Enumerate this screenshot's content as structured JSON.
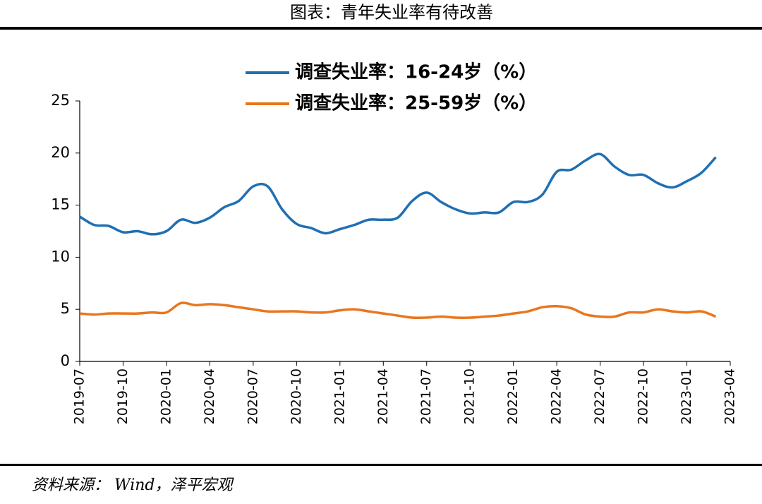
{
  "chart_data": {
    "type": "line",
    "title": "图表：青年失业率有待改善",
    "source": "资料来源： Wind，泽平宏观",
    "x": [
      "2019-07",
      "2019-08",
      "2019-09",
      "2019-10",
      "2019-11",
      "2019-12",
      "2020-01",
      "2020-02",
      "2020-03",
      "2020-04",
      "2020-05",
      "2020-06",
      "2020-07",
      "2020-08",
      "2020-09",
      "2020-10",
      "2020-11",
      "2020-12",
      "2021-01",
      "2021-02",
      "2021-03",
      "2021-04",
      "2021-05",
      "2021-06",
      "2021-07",
      "2021-08",
      "2021-09",
      "2021-10",
      "2021-11",
      "2021-12",
      "2022-01",
      "2022-02",
      "2022-03",
      "2022-04",
      "2022-05",
      "2022-06",
      "2022-07",
      "2022-08",
      "2022-09",
      "2022-10",
      "2022-11",
      "2022-12",
      "2023-01",
      "2023-02",
      "2023-03"
    ],
    "series": [
      {
        "name": "调查失业率：16-24岁（%）",
        "color": "#1f6fb4",
        "values": [
          13.9,
          13.1,
          13.0,
          12.4,
          12.5,
          12.2,
          12.5,
          13.6,
          13.3,
          13.8,
          14.8,
          15.4,
          16.8,
          16.8,
          14.6,
          13.2,
          12.8,
          12.3,
          12.7,
          13.1,
          13.6,
          13.6,
          13.8,
          15.4,
          16.2,
          15.3,
          14.6,
          14.2,
          14.3,
          14.3,
          15.3,
          15.3,
          16.0,
          18.2,
          18.4,
          19.3,
          19.9,
          18.7,
          17.9,
          17.9,
          17.1,
          16.7,
          17.3,
          18.1,
          19.6
        ]
      },
      {
        "name": "调查失业率：25-59岁（%）",
        "color": "#e9761e",
        "values": [
          4.6,
          4.5,
          4.6,
          4.6,
          4.6,
          4.7,
          4.7,
          5.6,
          5.4,
          5.5,
          5.4,
          5.2,
          5.0,
          4.8,
          4.8,
          4.8,
          4.7,
          4.7,
          4.9,
          5.0,
          4.8,
          4.6,
          4.4,
          4.2,
          4.2,
          4.3,
          4.2,
          4.2,
          4.3,
          4.4,
          4.6,
          4.8,
          5.2,
          5.3,
          5.1,
          4.5,
          4.3,
          4.3,
          4.7,
          4.7,
          5.0,
          4.8,
          4.7,
          4.8,
          4.3
        ]
      }
    ],
    "xticks": [
      "2019-07",
      "2019-10",
      "2020-01",
      "2020-04",
      "2020-07",
      "2020-10",
      "2021-01",
      "2021-04",
      "2021-07",
      "2021-10",
      "2022-01",
      "2022-04",
      "2022-07",
      "2022-10",
      "2023-01",
      "2023-04"
    ],
    "ylim": [
      0,
      25
    ],
    "yticks": [
      0,
      5,
      10,
      15,
      20,
      25
    ],
    "legend": "top"
  }
}
